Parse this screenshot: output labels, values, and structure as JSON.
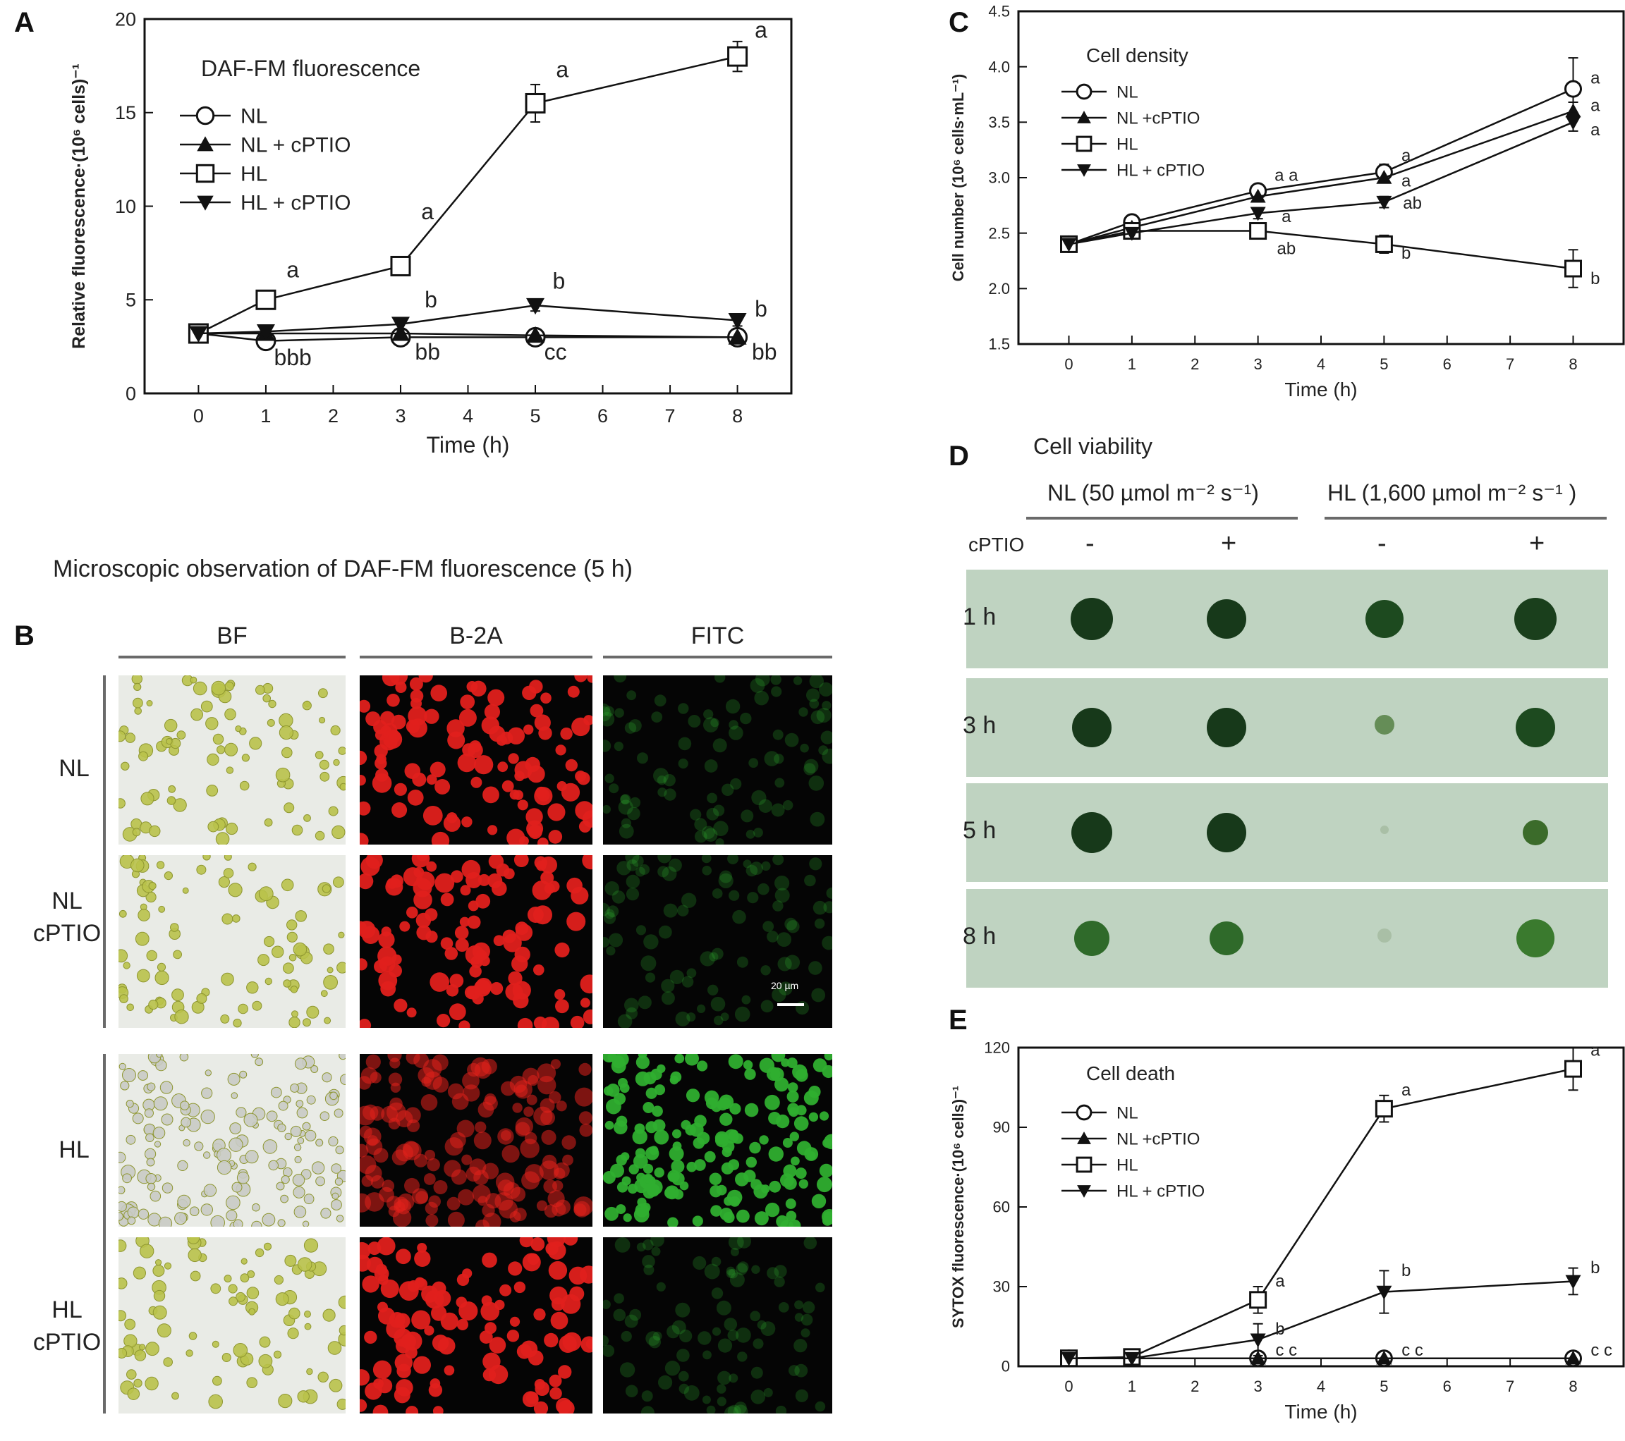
{
  "panels": {
    "A": "A",
    "B": "B",
    "C": "C",
    "D": "D",
    "E": "E"
  },
  "panel_b": {
    "title": "Microscopic observation of DAF-FM fluorescence (5 h)",
    "columns": [
      "BF",
      "B-2A",
      "FITC"
    ],
    "rows": [
      {
        "line1": "NL",
        "line2": ""
      },
      {
        "line1": "NL",
        "line2": "cPTIO"
      },
      {
        "line1": "HL",
        "line2": ""
      },
      {
        "line1": "HL",
        "line2": "cPTIO"
      }
    ],
    "scale_bar": "20 µm",
    "colors": {
      "bf_bg": "#e9ebe6",
      "cell_bf": "#b9c24a",
      "b2a": "#e0201c",
      "fitc": "#2fae2f"
    }
  },
  "panel_d": {
    "title": "Cell viability",
    "group_nl": "NL (50 µmol m⁻² s⁻¹)",
    "group_hl": "HL (1,600 µmol m⁻² s⁻¹ )",
    "cptio_label": "cPTIO",
    "signs": [
      "-",
      "+",
      "-",
      "+"
    ],
    "times": [
      "1 h",
      "3 h",
      "5 h",
      "8 h"
    ],
    "colors": {
      "plate": "#bfd3c1",
      "colony": "#1f4a1c"
    }
  },
  "chart_data": [
    {
      "id": "A",
      "type": "line",
      "title": "DAF-FM fluorescence",
      "xlabel": "Time (h)",
      "ylabel": "Relative fluorescence·(10⁶ cells)⁻¹",
      "xlim": [
        -0.8,
        8.8
      ],
      "ylim": [
        0,
        20
      ],
      "xticks": [
        0,
        1,
        2,
        3,
        4,
        5,
        6,
        7,
        8
      ],
      "yticks": [
        0,
        5,
        10,
        15,
        20
      ],
      "x": [
        0,
        1,
        3,
        5,
        8
      ],
      "legend_position": "top-left",
      "series": [
        {
          "name": "NL",
          "marker": "circle-open",
          "values": [
            3.2,
            2.8,
            3.0,
            3.0,
            3.0
          ],
          "errors": [
            0.3,
            0.3,
            0.3,
            0.3,
            0.4
          ]
        },
        {
          "name": "NL + cPTIO",
          "marker": "triangle-up",
          "values": [
            3.2,
            3.2,
            3.2,
            3.1,
            3.0
          ],
          "errors": [
            0,
            0,
            0,
            0,
            0
          ]
        },
        {
          "name": "HL",
          "marker": "square-open",
          "values": [
            3.2,
            5.0,
            6.8,
            15.5,
            18.0
          ],
          "errors": [
            0,
            0.3,
            0.3,
            1.0,
            0.8
          ]
        },
        {
          "name": "HL + cPTIO",
          "marker": "triangle-down",
          "values": [
            3.2,
            3.3,
            3.7,
            4.7,
            3.9
          ],
          "errors": [
            0,
            0,
            0.3,
            0.3,
            0.3
          ]
        }
      ],
      "annotations": [
        {
          "x": 1.4,
          "y": 6.2,
          "text": "a"
        },
        {
          "x": 3.4,
          "y": 9.3,
          "text": "a"
        },
        {
          "x": 5.4,
          "y": 16.9,
          "text": "a"
        },
        {
          "x": 8.35,
          "y": 19.0,
          "text": "a"
        },
        {
          "x": 3.45,
          "y": 4.6,
          "text": "b"
        },
        {
          "x": 5.35,
          "y": 5.6,
          "text": "b"
        },
        {
          "x": 8.35,
          "y": 4.1,
          "text": "b"
        },
        {
          "x": 1.4,
          "y": 1.5,
          "text": "bbb"
        },
        {
          "x": 3.4,
          "y": 1.8,
          "text": "bb"
        },
        {
          "x": 5.3,
          "y": 1.8,
          "text": "cc"
        },
        {
          "x": 8.4,
          "y": 1.8,
          "text": "bb"
        }
      ]
    },
    {
      "id": "C",
      "type": "line",
      "title": "Cell density",
      "xlabel": "Time (h)",
      "ylabel": "Cell number (10⁶ cells·mL⁻¹)",
      "xlim": [
        -0.8,
        8.8
      ],
      "ylim": [
        1.5,
        4.5
      ],
      "xticks": [
        0,
        1,
        2,
        3,
        4,
        5,
        6,
        7,
        8
      ],
      "yticks": [
        1.5,
        2.0,
        2.5,
        3.0,
        3.5,
        4.0,
        4.5
      ],
      "x": [
        0,
        1,
        3,
        5,
        8
      ],
      "legend_position": "top-left",
      "series": [
        {
          "name": "NL",
          "marker": "circle-open",
          "values": [
            2.4,
            2.6,
            2.88,
            3.05,
            3.8
          ],
          "errors": [
            0,
            0.03,
            0.05,
            0.07,
            0.28
          ]
        },
        {
          "name": "NL +cPTIO",
          "marker": "triangle-up",
          "values": [
            2.4,
            2.55,
            2.83,
            3.0,
            3.6
          ],
          "errors": [
            0,
            0,
            0,
            0,
            0.08
          ]
        },
        {
          "name": "HL",
          "marker": "square-open",
          "values": [
            2.4,
            2.52,
            2.52,
            2.4,
            2.18
          ],
          "errors": [
            0,
            0.03,
            0.07,
            0.08,
            0.17
          ]
        },
        {
          "name": "HL + cPTIO",
          "marker": "triangle-down",
          "values": [
            2.4,
            2.5,
            2.68,
            2.78,
            3.5
          ],
          "errors": [
            0,
            0,
            0.05,
            0.05,
            0.08
          ]
        }
      ],
      "annotations": [
        {
          "x": 3.45,
          "y": 2.97,
          "text": "a a"
        },
        {
          "x": 5.35,
          "y": 3.15,
          "text": "a"
        },
        {
          "x": 5.35,
          "y": 2.92,
          "text": "a"
        },
        {
          "x": 3.45,
          "y": 2.6,
          "text": "a"
        },
        {
          "x": 5.45,
          "y": 2.72,
          "text": "ab"
        },
        {
          "x": 3.45,
          "y": 2.31,
          "text": "ab"
        },
        {
          "x": 5.35,
          "y": 2.27,
          "text": "b"
        },
        {
          "x": 8.35,
          "y": 3.85,
          "text": "a"
        },
        {
          "x": 8.35,
          "y": 3.6,
          "text": "a"
        },
        {
          "x": 8.35,
          "y": 3.38,
          "text": "a"
        },
        {
          "x": 8.35,
          "y": 2.04,
          "text": "b"
        }
      ]
    },
    {
      "id": "E",
      "type": "line",
      "title": "Cell death",
      "xlabel": "Time (h)",
      "ylabel": "SYTOX fluorescence·(10⁶ cells)⁻¹",
      "xlim": [
        -0.8,
        8.8
      ],
      "ylim": [
        0,
        120
      ],
      "xticks": [
        0,
        1,
        2,
        3,
        4,
        5,
        6,
        7,
        8
      ],
      "yticks": [
        0,
        30,
        60,
        90,
        120
      ],
      "x": [
        0,
        1,
        3,
        5,
        8
      ],
      "legend_position": "top-left",
      "series": [
        {
          "name": "NL",
          "marker": "circle-open",
          "values": [
            3,
            3,
            3,
            3,
            3
          ],
          "errors": [
            0,
            0,
            0,
            0,
            0
          ]
        },
        {
          "name": "NL +cPTIO",
          "marker": "triangle-up",
          "values": [
            3,
            3,
            3,
            3,
            3
          ],
          "errors": [
            0,
            0,
            0,
            0,
            0
          ]
        },
        {
          "name": "HL",
          "marker": "square-open",
          "values": [
            3,
            3.5,
            25,
            97,
            112
          ],
          "errors": [
            0,
            0,
            5,
            5,
            8
          ]
        },
        {
          "name": "HL + cPTIO",
          "marker": "triangle-down",
          "values": [
            3,
            3,
            10,
            28,
            32
          ],
          "errors": [
            0,
            0,
            6,
            8,
            5
          ]
        }
      ],
      "annotations": [
        {
          "x": 5.35,
          "y": 102,
          "text": "a"
        },
        {
          "x": 8.35,
          "y": 117,
          "text": "a"
        },
        {
          "x": 3.35,
          "y": 30,
          "text": "a"
        },
        {
          "x": 3.35,
          "y": 12,
          "text": "b"
        },
        {
          "x": 5.35,
          "y": 34,
          "text": "b"
        },
        {
          "x": 8.35,
          "y": 35,
          "text": "b"
        },
        {
          "x": 3.45,
          "y": 4,
          "text": "c c"
        },
        {
          "x": 5.45,
          "y": 4,
          "text": "c c"
        },
        {
          "x": 8.45,
          "y": 4,
          "text": "c c"
        }
      ]
    }
  ]
}
